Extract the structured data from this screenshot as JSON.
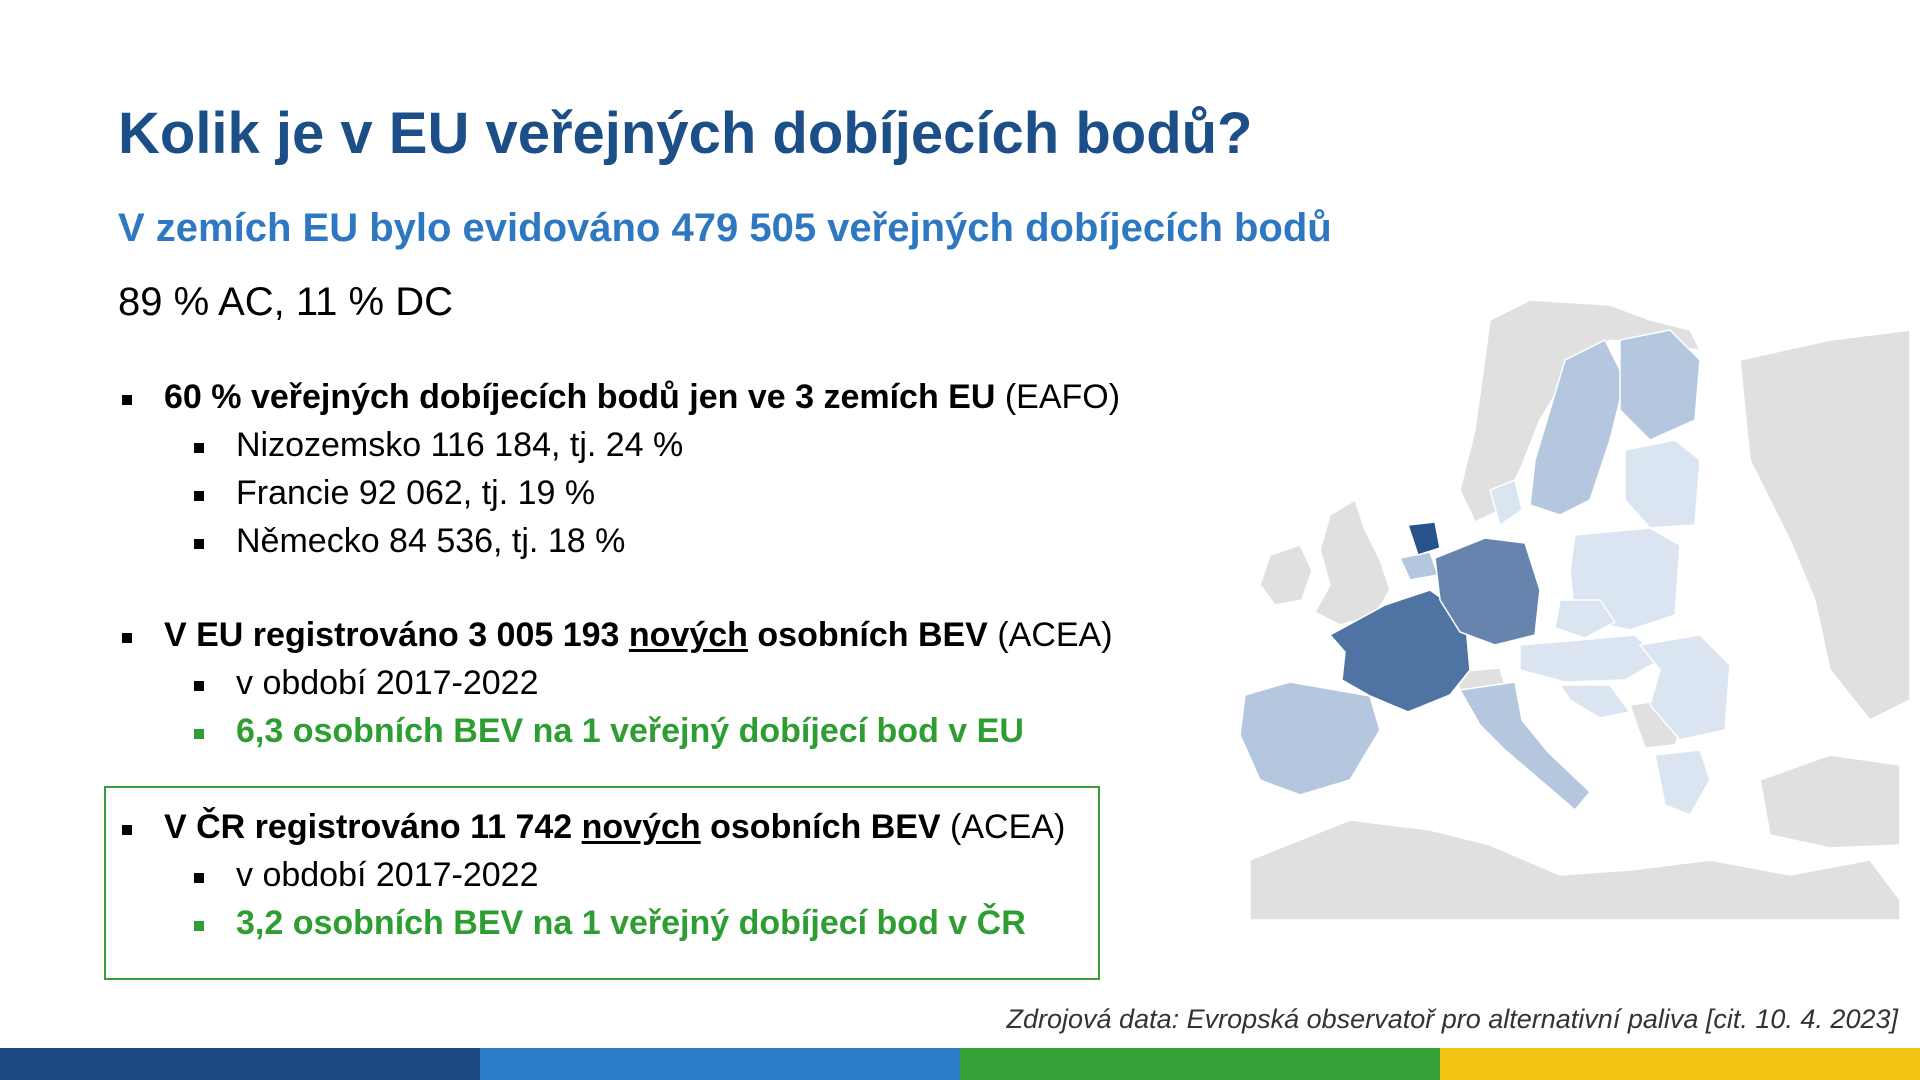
{
  "title": "Kolik je v EU veřejných dobíjecích bodů?",
  "subtitle": "V zemích EU bylo evidováno 479 505 veřejných dobíjecích bodů",
  "ratio": "89 % AC, 11 % DC",
  "block1": {
    "head_bold": "60 % veřejných dobíjecích bodů jen ve 3 zemích EU",
    "head_source": " (EAFO)",
    "items": [
      "Nizozemsko 116 184, tj. 24 %",
      "Francie 92 062, tj. 19 %",
      "Německo 84 536, tj. 18 %"
    ]
  },
  "block2": {
    "head_a": "V EU registrováno 3 005 193 ",
    "head_u": "nových",
    "head_b": " osobních BEV",
    "head_source": " (ACEA)",
    "item": "v období 2017-2022",
    "green": "6,3 osobních BEV na 1 veřejný dobíjecí bod v EU"
  },
  "block3": {
    "head_a": "V ČR registrováno 11 742 ",
    "head_u": "nových",
    "head_b": " osobních BEV",
    "head_source": " (ACEA)",
    "item": "v období 2017-2022",
    "green": "3,2 osobních BEV na 1 veřejný dobíjecí bod v ČR"
  },
  "source": "Zdrojová data: Evropská observatoř pro alternativní paliva [cit. 10. 4. 2023]",
  "colors": {
    "title": "#1c4e87",
    "subtitle": "#2e78c2",
    "green": "#2f9e32",
    "stripe": [
      "#1a4a80",
      "#2a7cc6",
      "#36a23a",
      "#f2c313"
    ],
    "map_netherlands": "#27528a",
    "map_france": "#4f73a3",
    "map_germany": "#6684ae",
    "map_light": "#dbe5f1",
    "map_non_eu": "#e0e0e0"
  }
}
